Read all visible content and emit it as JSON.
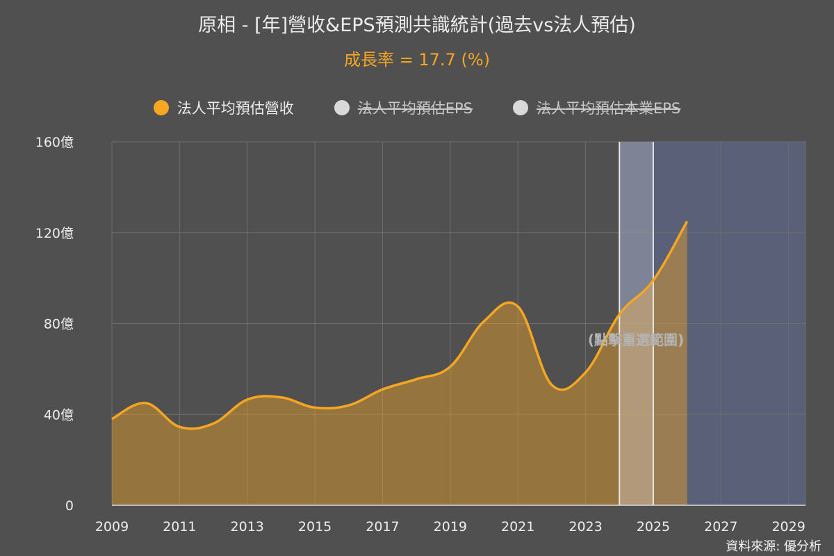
{
  "title": "原相 - [年]營收&EPS預測共識統計(過去vs法人預估)",
  "subtitle": "成長率 = 17.7 (%)",
  "legend": [
    {
      "label": "法人平均預估營收",
      "color": "#f5a623",
      "active": true
    },
    {
      "label": "法人平均預估EPS",
      "color": "#d9d9d9",
      "active": false
    },
    {
      "label": "法人平均預估本業EPS",
      "color": "#d9d9d9",
      "active": false
    }
  ],
  "overlay_text": "(點擊重選範圍)",
  "source": "資料來源: 優分析",
  "chart_data": {
    "type": "area",
    "x_ticks": [
      "2009",
      "2011",
      "2013",
      "2015",
      "2017",
      "2019",
      "2021",
      "2023",
      "2025",
      "2027",
      "2029"
    ],
    "y_ticks": [
      "0",
      "40億",
      "80億",
      "120億",
      "160億"
    ],
    "xlim": [
      2009,
      2029.5
    ],
    "ylim": [
      0,
      160
    ],
    "series": [
      {
        "name": "法人平均預估營收",
        "color": "#f5a623",
        "points": [
          [
            2009,
            38
          ],
          [
            2010,
            45
          ],
          [
            2011,
            34.5
          ],
          [
            2012,
            36
          ],
          [
            2013,
            46.5
          ],
          [
            2014,
            47.5
          ],
          [
            2015,
            43
          ],
          [
            2016,
            44
          ],
          [
            2017,
            51
          ],
          [
            2018,
            55.5
          ],
          [
            2019,
            61
          ],
          [
            2020,
            81
          ],
          [
            2021,
            87.5
          ],
          [
            2022,
            53
          ],
          [
            2023,
            58.5
          ],
          [
            2024,
            84
          ],
          [
            2025,
            99
          ],
          [
            2026,
            125
          ]
        ]
      }
    ],
    "forecast_region": [
      2024,
      2029.5
    ],
    "selected_range": [
      2024,
      2025
    ],
    "grid": true
  }
}
